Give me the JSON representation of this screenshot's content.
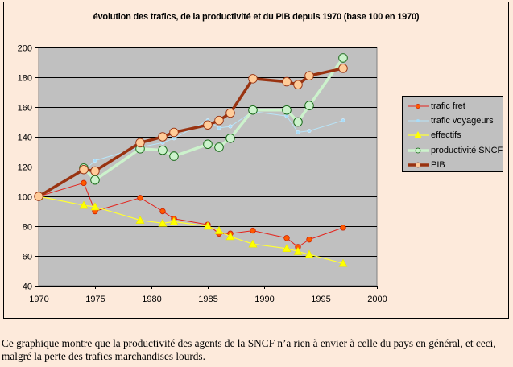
{
  "chart_data": {
    "type": "line",
    "title": "évolution des trafics, de la productivité et du PIB depuis 1970 (base 100 en 1970)",
    "xlabel": "",
    "ylabel": "",
    "xlim": [
      1970,
      2000
    ],
    "ylim": [
      40,
      200
    ],
    "xticks": [
      1970,
      1975,
      1980,
      1985,
      1990,
      1995,
      2000
    ],
    "yticks": [
      40,
      60,
      80,
      100,
      120,
      140,
      160,
      180,
      200
    ],
    "grid": "horizontal",
    "plot_background": "#c0c0c0",
    "legend_position": "right",
    "series": [
      {
        "name": "trafic fret",
        "color": "#e4221b",
        "marker": "diamond",
        "x": [
          1970,
          1974,
          1975,
          1979,
          1981,
          1982,
          1985,
          1986,
          1987,
          1989,
          1992,
          1993,
          1994,
          1997
        ],
        "y": [
          100,
          109,
          90,
          99,
          90,
          85,
          81,
          75,
          75,
          77,
          72,
          66,
          71,
          79
        ]
      },
      {
        "name": "trafic voyageurs",
        "color": "#b8e4f8",
        "marker": "small-circle",
        "x": [
          1970,
          1974,
          1975,
          1979,
          1981,
          1982,
          1985,
          1986,
          1987,
          1989,
          1992,
          1993,
          1994,
          1997
        ],
        "y": [
          100,
          117,
          124,
          133,
          136,
          139,
          151,
          146,
          147,
          157,
          154,
          143,
          144,
          151
        ]
      },
      {
        "name": "effectifs",
        "color": "#ffff33",
        "marker": "triangle",
        "x": [
          1970,
          1974,
          1975,
          1979,
          1981,
          1982,
          1985,
          1986,
          1987,
          1989,
          1992,
          1993,
          1994,
          1997
        ],
        "y": [
          100,
          94,
          93,
          84,
          82,
          83,
          80,
          77,
          73,
          68,
          65,
          63,
          61,
          55
        ]
      },
      {
        "name": "productivité SNCF",
        "color": "#ccf2cc",
        "marker": "circle",
        "marker_fill": "#ccf2cc",
        "marker_edge": "#116611",
        "x": [
          1974,
          1975,
          1979,
          1981,
          1982,
          1985,
          1986,
          1987,
          1989,
          1992,
          1993,
          1994,
          1997
        ],
        "y": [
          119,
          111,
          132,
          131,
          127,
          135,
          133,
          139,
          158,
          158,
          150,
          161,
          193
        ]
      },
      {
        "name": "PIB",
        "color": "#993311",
        "marker": "circle",
        "marker_fill": "#ffcc99",
        "marker_edge": "#993311",
        "x": [
          1970,
          1974,
          1975,
          1979,
          1981,
          1982,
          1985,
          1986,
          1987,
          1989,
          1992,
          1993,
          1994,
          1997
        ],
        "y": [
          100,
          118,
          117,
          136,
          140,
          143,
          148,
          151,
          156,
          179,
          177,
          175,
          181,
          186
        ]
      }
    ]
  },
  "caption": "Ce graphique montre que la productivité des agents de la SNCF n’a rien à envier à celle du pays en général, et ceci, malgré la perte des trafics marchandises lourds."
}
